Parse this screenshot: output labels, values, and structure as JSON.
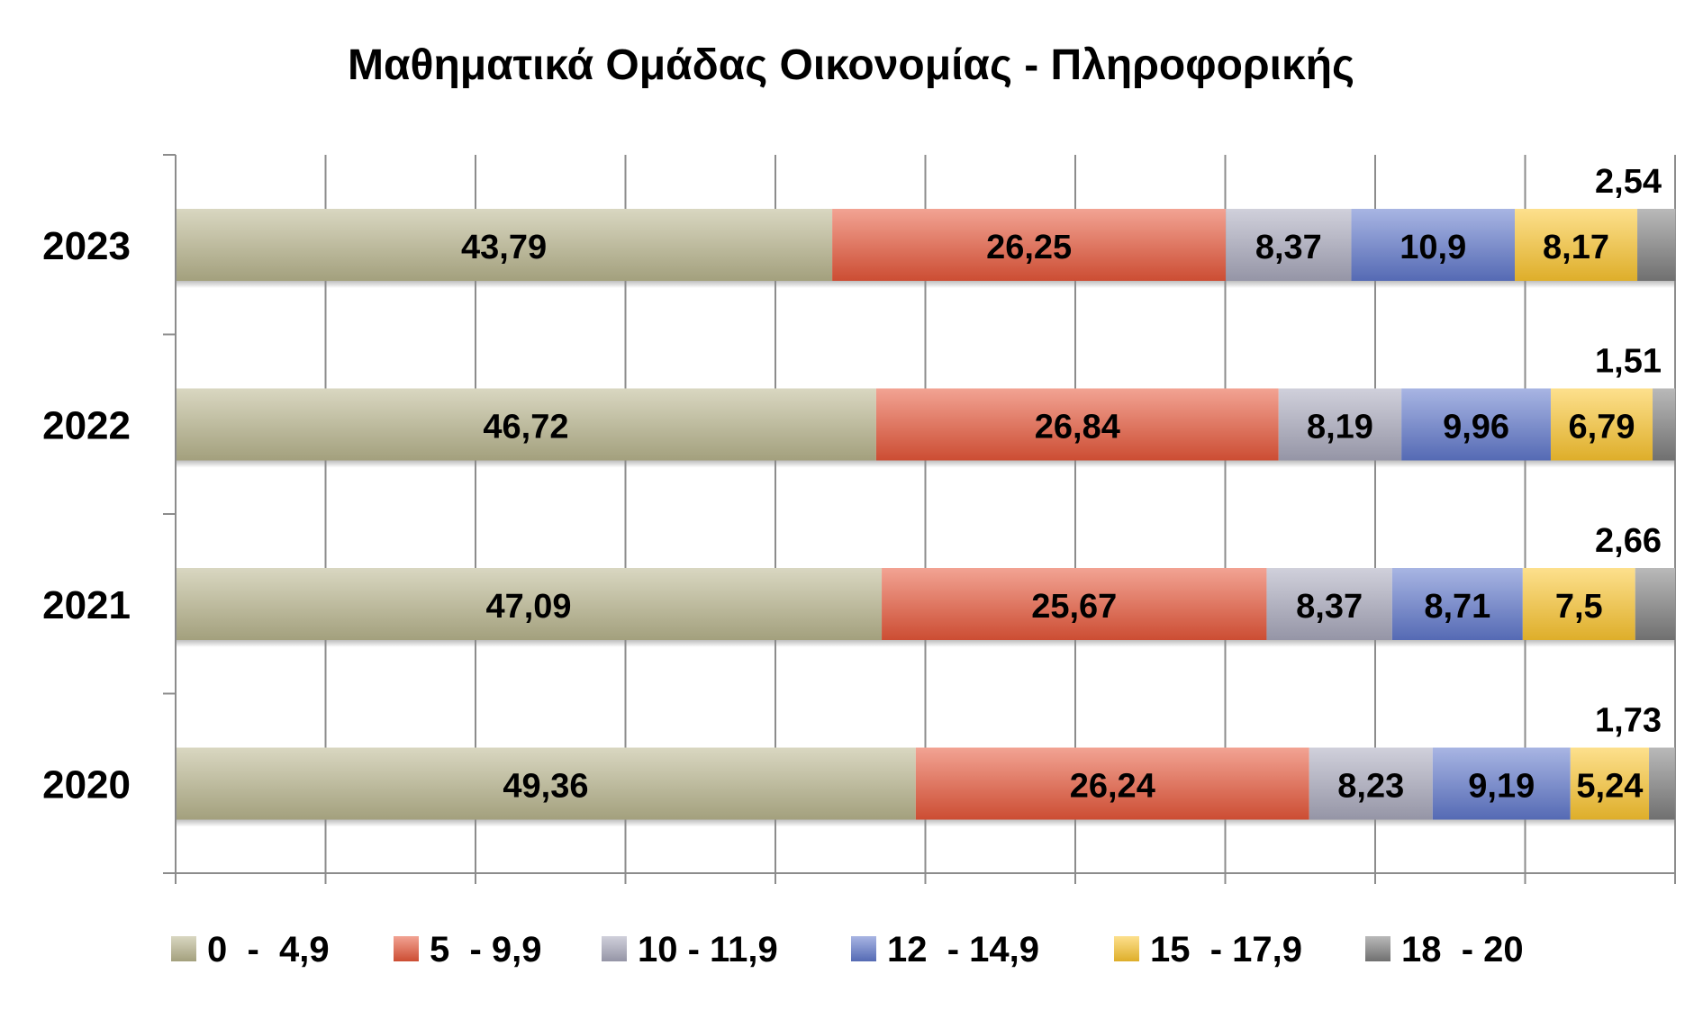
{
  "chart_data": {
    "type": "bar",
    "orientation": "horizontal",
    "stacked": true,
    "title": "Μαθηματικά Ομάδας Οικονομίας - Πληροφορικής",
    "xlabel": "",
    "ylabel": "",
    "xlim": [
      0,
      100
    ],
    "grid": true,
    "legend_position": "bottom",
    "categories": [
      "2023",
      "2022",
      "2021",
      "2020"
    ],
    "series": [
      {
        "name": "0  -  4,9",
        "color": "#b9b68e",
        "values": [
          43.79,
          46.72,
          47.09,
          49.36
        ],
        "labels": [
          "43,79",
          "46,72",
          "47,09",
          "49,36"
        ]
      },
      {
        "name": "5  - 9,9",
        "color": "#e8583a",
        "values": [
          26.25,
          26.84,
          25.67,
          26.24
        ],
        "labels": [
          "26,25",
          "26,84",
          "25,67",
          "26,24"
        ]
      },
      {
        "name": "10 - 11,9",
        "color": "#a9a9bd",
        "values": [
          8.37,
          8.19,
          8.37,
          8.23
        ],
        "labels": [
          "8,37",
          "8,19",
          "8,37",
          "8,23"
        ]
      },
      {
        "name": "12  - 14,9",
        "color": "#6178cc",
        "values": [
          10.9,
          9.96,
          8.71,
          9.19
        ],
        "labels": [
          "10,9",
          "9,96",
          "8,71",
          "9,19"
        ]
      },
      {
        "name": "15  - 17,9",
        "color": "#fcc630",
        "values": [
          8.17,
          6.79,
          7.5,
          5.24
        ],
        "labels": [
          "8,17",
          "6,79",
          "7,5",
          "5,24"
        ]
      },
      {
        "name": "18  - 20",
        "color": "#7f7f7f",
        "values": [
          2.54,
          1.51,
          2.66,
          1.73
        ],
        "labels": [
          "2,54",
          "1,51",
          "2,66",
          "1,73"
        ]
      }
    ]
  }
}
